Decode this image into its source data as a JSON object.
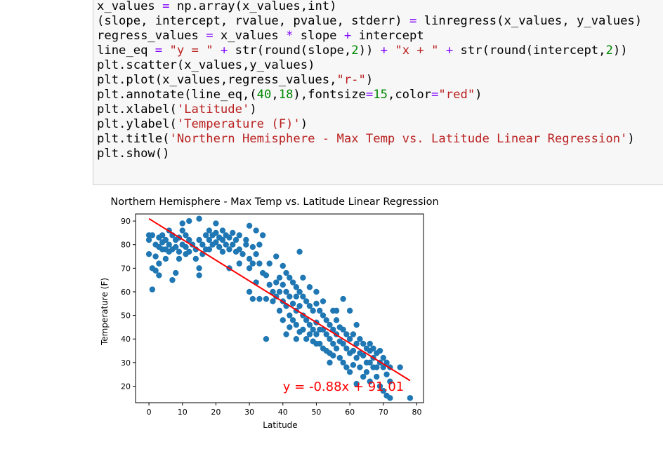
{
  "code_cell": {
    "lines": [
      [
        [
          "x_values ",
          "v"
        ],
        [
          "=",
          "o"
        ],
        [
          " np.array(x_values,int)",
          "v"
        ]
      ],
      [
        [
          "(slope, intercept, rvalue, pvalue, stderr) ",
          "v"
        ],
        [
          "=",
          "o"
        ],
        [
          " linregress(x_values, y_values)",
          "v"
        ]
      ],
      [
        [
          "regress_values ",
          "v"
        ],
        [
          "=",
          "o"
        ],
        [
          " x_values ",
          "v"
        ],
        [
          "*",
          "o"
        ],
        [
          " slope ",
          "v"
        ],
        [
          "+",
          "o"
        ],
        [
          " intercept",
          "v"
        ]
      ],
      [
        [
          "line_eq ",
          "v"
        ],
        [
          "=",
          "o"
        ],
        [
          " ",
          "v"
        ],
        [
          "\"y = \"",
          "s"
        ],
        [
          " ",
          "v"
        ],
        [
          "+",
          "o"
        ],
        [
          " str(round(slope,",
          "v"
        ],
        [
          "2",
          "n"
        ],
        [
          ")) ",
          "v"
        ],
        [
          "+",
          "o"
        ],
        [
          " ",
          "v"
        ],
        [
          "\"x + \"",
          "s"
        ],
        [
          " ",
          "v"
        ],
        [
          "+",
          "o"
        ],
        [
          " str(round(intercept,",
          "v"
        ],
        [
          "2",
          "n"
        ],
        [
          "))",
          "v"
        ]
      ],
      [
        [
          "plt.scatter(x_values,y_values)",
          "v"
        ]
      ],
      [
        [
          "plt.plot(x_values,regress_values,",
          "v"
        ],
        [
          "\"r-\"",
          "s"
        ],
        [
          ")",
          "v"
        ]
      ],
      [
        [
          "plt.annotate(line_eq,(",
          "v"
        ],
        [
          "40",
          "n"
        ],
        [
          ",",
          "v"
        ],
        [
          "18",
          "n"
        ],
        [
          "),fontsize",
          "v"
        ],
        [
          "=",
          "o"
        ],
        [
          "15",
          "n"
        ],
        [
          ",color",
          "v"
        ],
        [
          "=",
          "o"
        ],
        [
          "\"red\"",
          "s"
        ],
        [
          ")",
          "v"
        ]
      ],
      [
        [
          "plt.xlabel(",
          "v"
        ],
        [
          "'Latitude'",
          "s"
        ],
        [
          ")",
          "v"
        ]
      ],
      [
        [
          "plt.ylabel(",
          "v"
        ],
        [
          "'Temperature (F)'",
          "s"
        ],
        [
          ")",
          "v"
        ]
      ],
      [
        [
          "plt.title(",
          "v"
        ],
        [
          "'Northern Hemisphere - Max Temp vs. Latitude Linear Regression'",
          "s"
        ],
        [
          ")",
          "v"
        ]
      ],
      [
        [
          "plt.show()",
          "v"
        ]
      ]
    ]
  },
  "chart_data": {
    "type": "scatter",
    "title": "Northern Hemisphere - Max Temp vs. Latitude Linear Regression",
    "xlabel": "Latitude",
    "ylabel": "Temperature (F)",
    "xlim": [
      -4,
      82
    ],
    "ylim": [
      13,
      93
    ],
    "xticks": [
      0,
      10,
      20,
      30,
      40,
      50,
      60,
      70,
      80
    ],
    "yticks": [
      20,
      30,
      40,
      50,
      60,
      70,
      80,
      90
    ],
    "grid": false,
    "scatter_color": "#1f77b4",
    "line_color": "#ff0000",
    "regression": {
      "slope": -0.88,
      "intercept": 91.01,
      "x_range": [
        0,
        78
      ]
    },
    "annotation": {
      "text": "y = -0.88x + 91.01",
      "x": 40,
      "y": 18,
      "color": "#ff0000"
    },
    "points": [
      [
        0,
        84
      ],
      [
        0,
        82
      ],
      [
        0,
        76
      ],
      [
        1,
        84
      ],
      [
        1,
        70
      ],
      [
        1,
        61
      ],
      [
        2,
        80
      ],
      [
        2,
        75
      ],
      [
        2,
        69
      ],
      [
        3,
        83
      ],
      [
        3,
        79
      ],
      [
        3,
        72
      ],
      [
        3,
        67
      ],
      [
        4,
        84
      ],
      [
        4,
        81
      ],
      [
        4,
        78
      ],
      [
        5,
        82
      ],
      [
        5,
        78
      ],
      [
        5,
        74
      ],
      [
        6,
        86
      ],
      [
        6,
        80
      ],
      [
        6,
        77
      ],
      [
        7,
        84
      ],
      [
        7,
        78
      ],
      [
        7,
        65
      ],
      [
        8,
        82
      ],
      [
        8,
        79
      ],
      [
        8,
        68
      ],
      [
        9,
        83
      ],
      [
        9,
        77
      ],
      [
        9,
        74
      ],
      [
        10,
        89
      ],
      [
        10,
        86
      ],
      [
        10,
        80
      ],
      [
        11,
        84
      ],
      [
        11,
        79
      ],
      [
        11,
        76
      ],
      [
        12,
        90
      ],
      [
        12,
        82
      ],
      [
        12,
        77
      ],
      [
        13,
        80
      ],
      [
        14,
        78
      ],
      [
        14,
        74
      ],
      [
        15,
        91
      ],
      [
        15,
        82
      ],
      [
        15,
        70
      ],
      [
        15,
        67
      ],
      [
        16,
        80
      ],
      [
        16,
        76
      ],
      [
        17,
        84
      ],
      [
        17,
        78
      ],
      [
        18,
        86
      ],
      [
        18,
        82
      ],
      [
        18,
        78
      ],
      [
        19,
        84
      ],
      [
        19,
        80
      ],
      [
        20,
        89
      ],
      [
        20,
        85
      ],
      [
        20,
        81
      ],
      [
        21,
        83
      ],
      [
        21,
        79
      ],
      [
        22,
        86
      ],
      [
        22,
        82
      ],
      [
        22,
        77
      ],
      [
        23,
        84
      ],
      [
        23,
        80
      ],
      [
        24,
        83
      ],
      [
        24,
        78
      ],
      [
        25,
        85
      ],
      [
        25,
        80
      ],
      [
        26,
        82
      ],
      [
        26,
        77
      ],
      [
        27,
        84
      ],
      [
        27,
        78
      ],
      [
        28,
        76
      ],
      [
        29,
        82
      ],
      [
        29,
        80
      ],
      [
        30,
        88
      ],
      [
        30,
        74
      ],
      [
        30,
        70
      ],
      [
        31,
        79
      ],
      [
        31,
        72
      ],
      [
        32,
        86
      ],
      [
        32,
        76
      ],
      [
        33,
        80
      ],
      [
        33,
        72
      ],
      [
        34,
        84
      ],
      [
        34,
        68
      ],
      [
        30,
        60
      ],
      [
        31,
        57
      ],
      [
        32,
        64
      ],
      [
        33,
        57
      ],
      [
        35,
        67
      ],
      [
        35,
        57
      ],
      [
        36,
        63
      ],
      [
        36,
        72
      ],
      [
        37,
        56
      ],
      [
        37,
        60
      ],
      [
        38,
        64
      ],
      [
        38,
        58
      ],
      [
        39,
        66
      ],
      [
        39,
        60
      ],
      [
        39,
        52
      ],
      [
        40,
        71
      ],
      [
        40,
        63
      ],
      [
        40,
        56
      ],
      [
        40,
        48
      ],
      [
        41,
        68
      ],
      [
        41,
        60
      ],
      [
        41,
        54
      ],
      [
        41,
        42
      ],
      [
        42,
        66
      ],
      [
        42,
        58
      ],
      [
        42,
        50
      ],
      [
        42,
        45
      ],
      [
        43,
        64
      ],
      [
        43,
        55
      ],
      [
        43,
        48
      ],
      [
        44,
        62
      ],
      [
        44,
        52
      ],
      [
        44,
        46
      ],
      [
        44,
        40
      ],
      [
        45,
        60
      ],
      [
        45,
        54
      ],
      [
        45,
        43
      ],
      [
        46,
        58
      ],
      [
        46,
        50
      ],
      [
        46,
        44
      ],
      [
        47,
        56
      ],
      [
        47,
        48
      ],
      [
        47,
        40
      ],
      [
        48,
        54
      ],
      [
        48,
        46
      ],
      [
        48,
        42
      ],
      [
        49,
        52
      ],
      [
        49,
        44
      ],
      [
        49,
        39
      ],
      [
        50,
        55
      ],
      [
        50,
        47
      ],
      [
        50,
        42
      ],
      [
        50,
        38
      ],
      [
        51,
        52
      ],
      [
        51,
        44
      ],
      [
        51,
        38
      ],
      [
        52,
        50
      ],
      [
        52,
        44
      ],
      [
        52,
        36
      ],
      [
        53,
        48
      ],
      [
        53,
        42
      ],
      [
        53,
        35
      ],
      [
        54,
        46
      ],
      [
        54,
        40
      ],
      [
        54,
        34
      ],
      [
        55,
        52
      ],
      [
        55,
        44
      ],
      [
        55,
        38
      ],
      [
        55,
        33
      ],
      [
        56,
        48
      ],
      [
        56,
        42
      ],
      [
        56,
        36
      ],
      [
        57,
        45
      ],
      [
        57,
        39
      ],
      [
        57,
        32
      ],
      [
        58,
        44
      ],
      [
        58,
        38
      ],
      [
        58,
        30
      ],
      [
        59,
        42
      ],
      [
        59,
        36
      ],
      [
        59,
        28
      ],
      [
        60,
        40
      ],
      [
        60,
        34
      ],
      [
        60,
        26
      ],
      [
        61,
        42
      ],
      [
        61,
        35
      ],
      [
        61,
        29
      ],
      [
        62,
        46
      ],
      [
        62,
        38
      ],
      [
        62,
        32
      ],
      [
        63,
        40
      ],
      [
        63,
        34
      ],
      [
        63,
        28
      ],
      [
        64,
        38
      ],
      [
        64,
        33
      ],
      [
        64,
        24
      ],
      [
        65,
        36
      ],
      [
        65,
        30
      ],
      [
        65,
        26
      ],
      [
        66,
        35
      ],
      [
        66,
        30
      ],
      [
        66,
        22
      ],
      [
        67,
        36
      ],
      [
        67,
        32
      ],
      [
        67,
        28
      ],
      [
        68,
        34
      ],
      [
        68,
        28
      ],
      [
        68,
        24
      ],
      [
        69,
        35
      ],
      [
        69,
        30
      ],
      [
        69,
        20
      ],
      [
        70,
        32
      ],
      [
        70,
        28
      ],
      [
        70,
        18
      ],
      [
        71,
        30
      ],
      [
        71,
        25
      ],
      [
        71,
        16
      ],
      [
        72,
        28
      ],
      [
        72,
        22
      ],
      [
        72,
        15
      ],
      [
        60,
        52
      ],
      [
        50,
        60
      ],
      [
        45,
        77
      ],
      [
        58,
        57
      ],
      [
        35,
        40
      ],
      [
        62,
        21
      ],
      [
        75,
        28
      ],
      [
        78,
        15
      ],
      [
        44,
        58
      ],
      [
        48,
        62
      ],
      [
        52,
        56
      ],
      [
        46,
        66
      ],
      [
        56,
        52
      ],
      [
        54,
        30
      ],
      [
        66,
        38
      ],
      [
        38,
        75
      ],
      [
        27,
        72
      ],
      [
        24,
        70
      ]
    ]
  }
}
